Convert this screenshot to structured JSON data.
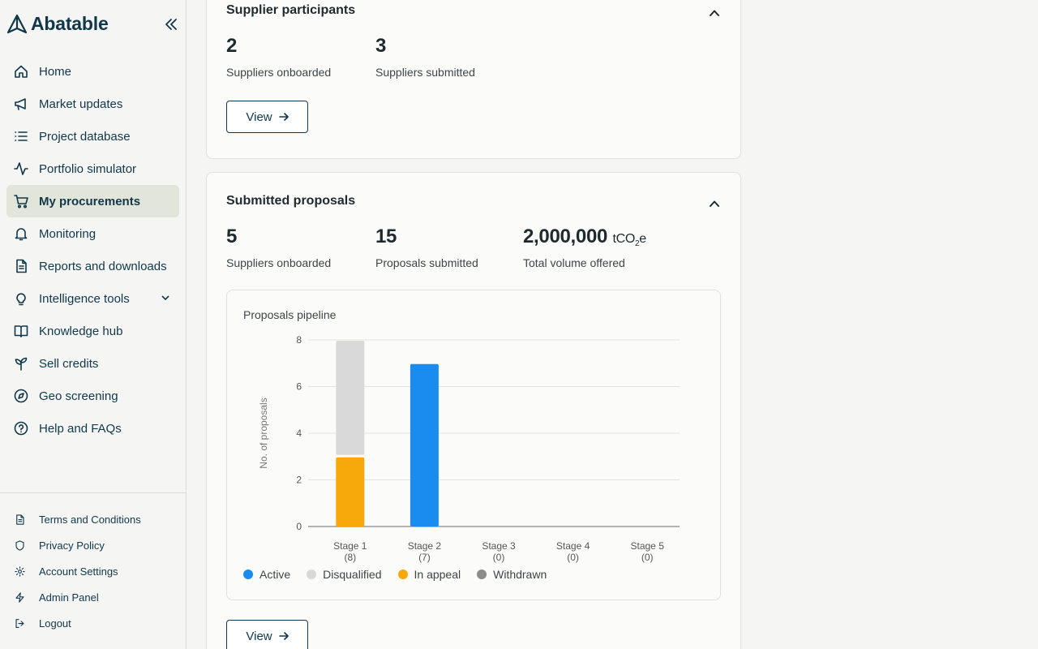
{
  "app": {
    "logo_text": "Abatable"
  },
  "sidebar": {
    "items": [
      {
        "label": "Home",
        "icon": "home-icon"
      },
      {
        "label": "Market updates",
        "icon": "megaphone-icon"
      },
      {
        "label": "Project database",
        "icon": "list-icon"
      },
      {
        "label": "Portfolio simulator",
        "icon": "activity-icon"
      },
      {
        "label": "My procurements",
        "icon": "cart-icon",
        "active": true
      },
      {
        "label": "Monitoring",
        "icon": "bell-icon"
      },
      {
        "label": "Reports and downloads",
        "icon": "document-icon"
      },
      {
        "label": "Intelligence tools",
        "icon": "lightbulb-icon",
        "expandable": true
      },
      {
        "label": "Knowledge hub",
        "icon": "book-icon"
      },
      {
        "label": "Sell credits",
        "icon": "sprout-icon"
      },
      {
        "label": "Geo screening",
        "icon": "compass-icon"
      },
      {
        "label": "Help and FAQs",
        "icon": "help-circle-icon"
      }
    ],
    "footer": [
      {
        "label": "Terms and Conditions",
        "icon": "document-icon"
      },
      {
        "label": "Privacy Policy",
        "icon": "shield-icon"
      },
      {
        "label": "Account Settings",
        "icon": "gear-icon"
      },
      {
        "label": "Admin Panel",
        "icon": "lightning-icon"
      },
      {
        "label": "Logout",
        "icon": "logout-icon"
      }
    ]
  },
  "supplier_participants": {
    "title": "Supplier participants",
    "stats": [
      {
        "value": "2",
        "label": "Suppliers onboarded"
      },
      {
        "value": "3",
        "label": "Suppliers submitted"
      }
    ],
    "view_label": "View"
  },
  "submitted_proposals": {
    "title": "Submitted proposals",
    "stats": [
      {
        "value": "5",
        "label": "Suppliers onboarded"
      },
      {
        "value": "15",
        "label": "Proposals submitted"
      },
      {
        "value": "2,000,000",
        "unit_prefix": "tCO",
        "unit_sub": "2",
        "unit_suffix": "e",
        "label": "Total volume offered"
      }
    ],
    "view_label": "View"
  },
  "chart_data": {
    "type": "bar",
    "stacked": true,
    "title": "Proposals pipeline",
    "ylabel": "No. of proposals",
    "xlabel": "",
    "ylim": [
      0,
      8
    ],
    "yticks": [
      0,
      2,
      4,
      6,
      8
    ],
    "grid": true,
    "legend_position": "bottom-left",
    "categories": [
      "Stage 1",
      "Stage 2",
      "Stage 3",
      "Stage 4",
      "Stage 5"
    ],
    "category_counts": [
      "(8)",
      "(7)",
      "(0)",
      "(0)",
      "(0)"
    ],
    "series": [
      {
        "name": "Active",
        "color": "#1a8cf0",
        "values": [
          0,
          7,
          0,
          0,
          0
        ]
      },
      {
        "name": "Disqualified",
        "color": "#d9d9d9",
        "values": [
          5,
          0,
          0,
          0,
          0
        ]
      },
      {
        "name": "In appeal",
        "color": "#f7a90c",
        "values": [
          3,
          0,
          0,
          0,
          0
        ]
      },
      {
        "name": "Withdrawn",
        "color": "#8c8c8c",
        "values": [
          0,
          0,
          0,
          0,
          0
        ]
      }
    ],
    "stack_order": [
      "In appeal",
      "Disqualified",
      "Active",
      "Withdrawn"
    ]
  }
}
